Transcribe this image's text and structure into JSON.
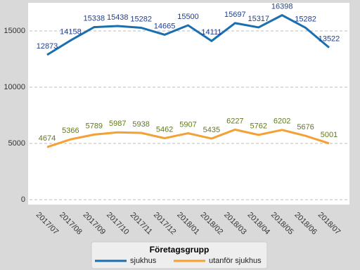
{
  "chart_data": {
    "type": "line",
    "categories": [
      "2017/07",
      "2017/08",
      "2017/09",
      "2017/10",
      "2017/11",
      "2017/12",
      "2018/01",
      "2018/02",
      "2018/03",
      "2018/04",
      "2018/05",
      "2018/06",
      "2018/07"
    ],
    "series": [
      {
        "name": "sjukhus",
        "color": "#1a6faf",
        "label_color": "#1f3f8f",
        "values": [
          12873,
          14158,
          15338,
          15438,
          15282,
          14665,
          15500,
          14111,
          15697,
          15317,
          16398,
          15282,
          13522
        ]
      },
      {
        "name": "utanför sjukhus",
        "color": "#f5a033",
        "label_color": "#5f7a18",
        "values": [
          4674,
          5366,
          5789,
          5987,
          5938,
          5462,
          5907,
          5435,
          6227,
          5762,
          6202,
          5676,
          5001
        ]
      }
    ],
    "ylim": [
      0,
      17500
    ],
    "yticks": [
      0,
      5000,
      10000,
      15000
    ],
    "grid": true,
    "legend_title": "Företagsgrupp",
    "legend": "bottom"
  }
}
